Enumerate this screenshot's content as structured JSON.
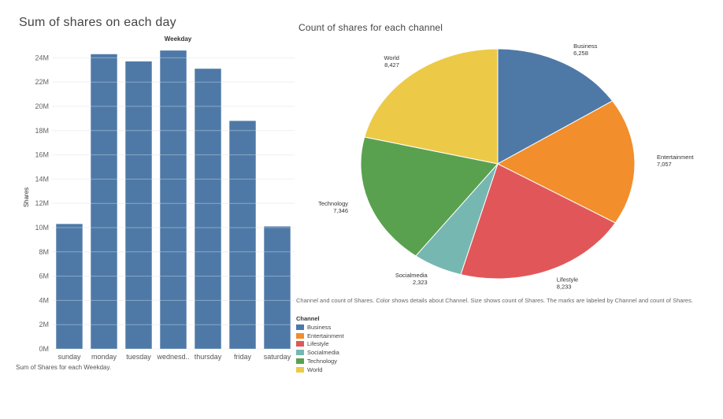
{
  "left_chart": {
    "title": "Sum of shares on each day",
    "caption": "Sum of Shares for each Weekday."
  },
  "right_chart": {
    "title": "Count of shares for each channel",
    "caption": "Channel and count of Shares.  Color shows details about Channel.  Size shows count of Shares.  The marks are labeled by Channel and count of Shares."
  },
  "legend": {
    "title": "Channel",
    "items": [
      {
        "label": "Business",
        "color": "#4e79a7"
      },
      {
        "label": "Entertainment",
        "color": "#f28e2b"
      },
      {
        "label": "Lifestyle",
        "color": "#e15759"
      },
      {
        "label": "Socialmedia",
        "color": "#76b7b2"
      },
      {
        "label": "Technology",
        "color": "#59a14f"
      },
      {
        "label": "World",
        "color": "#edc948"
      }
    ]
  },
  "chart_data": [
    {
      "type": "bar",
      "title": "Sum of shares on each day",
      "xlabel": "Weekday",
      "ylabel": "Shares",
      "categories": [
        "sunday",
        "monday",
        "tuesday",
        "wednesd..",
        "thursday",
        "friday",
        "saturday"
      ],
      "values": [
        10.3,
        24.3,
        23.7,
        24.6,
        23.1,
        18.8,
        10.1
      ],
      "value_unit": "M",
      "ylim": [
        0,
        25
      ],
      "yticks": [
        "0M",
        "2M",
        "4M",
        "6M",
        "8M",
        "10M",
        "12M",
        "14M",
        "16M",
        "18M",
        "20M",
        "22M",
        "24M"
      ],
      "color": "#4e79a7",
      "grid": true
    },
    {
      "type": "pie",
      "title": "Count of shares for each channel",
      "slices": [
        {
          "label": "Business",
          "value": 6258,
          "display": "6,258",
          "color": "#4e79a7"
        },
        {
          "label": "Entertainment",
          "value": 7057,
          "display": "7,057",
          "color": "#f28e2b"
        },
        {
          "label": "Lifestyle",
          "value": 8233,
          "display": "8,233",
          "color": "#e15759"
        },
        {
          "label": "Socialmedia",
          "value": 2323,
          "display": "2,323",
          "color": "#76b7b2"
        },
        {
          "label": "Technology",
          "value": 7346,
          "display": "7,346",
          "color": "#59a14f"
        },
        {
          "label": "World",
          "value": 8427,
          "display": "8,427",
          "color": "#edc948"
        }
      ],
      "legend_position": "bottom-left"
    }
  ]
}
